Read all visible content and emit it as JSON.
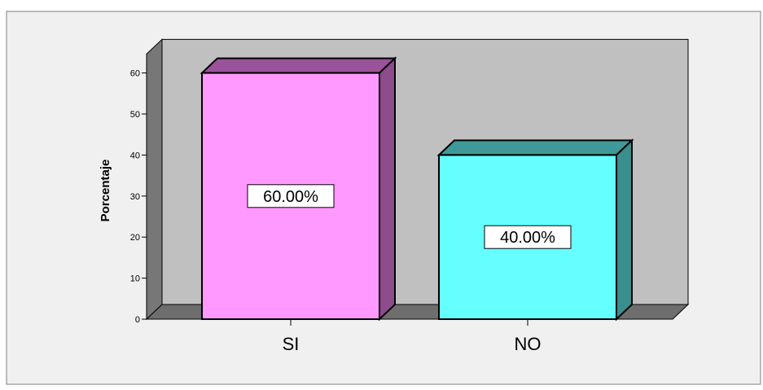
{
  "chart_data": {
    "type": "bar",
    "title": "",
    "ylabel": "Porcentaje",
    "xlabel": "",
    "categories": [
      "SI",
      "NO"
    ],
    "values": [
      60,
      40
    ],
    "data_labels": [
      "60.00%",
      "40.00%"
    ],
    "ylim": [
      0,
      65
    ],
    "y_ticks": [
      0,
      10,
      20,
      30,
      40,
      50,
      60
    ],
    "y_tick_labels": [
      "0",
      "10",
      "20",
      "30",
      "40",
      "50",
      "60"
    ],
    "bar_colors": [
      "#ff99ff",
      "#66ffff"
    ],
    "bar_side_colors": [
      "#8e4b8e",
      "#3a8e8e"
    ],
    "bar_top_colors": [
      "#9a529a",
      "#3f9999"
    ],
    "wall_color": "#c0c0c0",
    "floor_color": "#6e6e6e",
    "side_wall_color": "#777777",
    "grid": false,
    "style": "3d"
  }
}
